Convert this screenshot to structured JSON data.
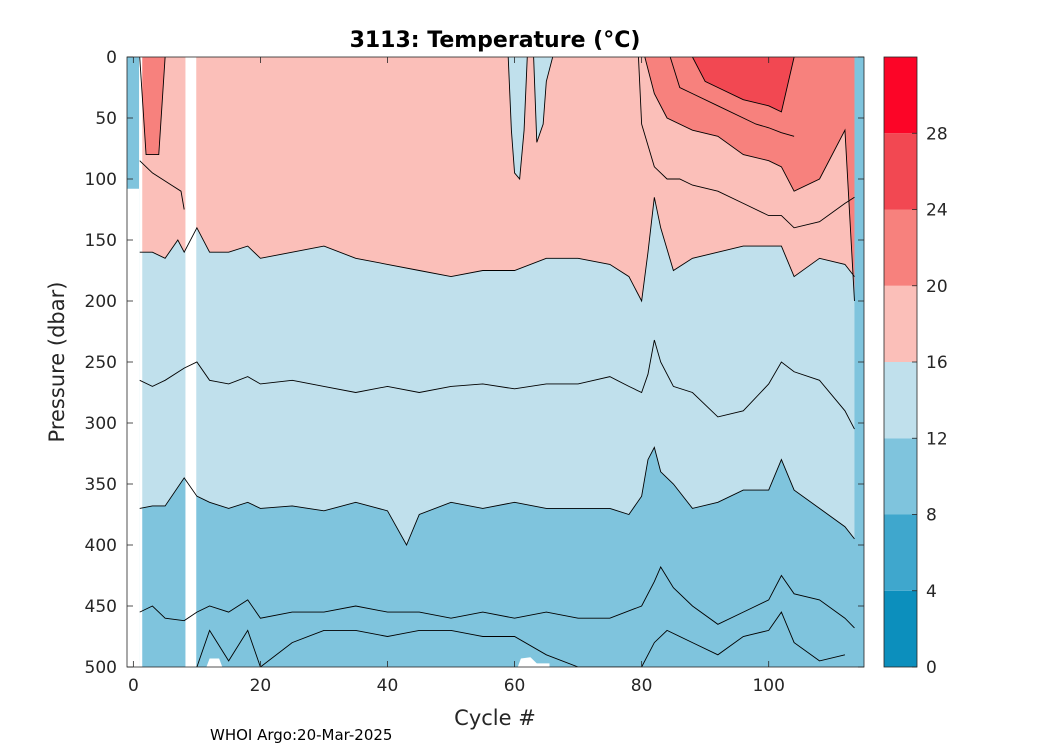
{
  "chart_data": {
    "type": "contour",
    "title": "3113:  Temperature (°C)",
    "xlabel": "Cycle #",
    "ylabel": "Pressure (dbar)",
    "xlim": [
      -1,
      115
    ],
    "ylim": [
      0,
      500
    ],
    "y_reversed": true,
    "x_ticks": [
      0,
      20,
      40,
      60,
      80,
      100
    ],
    "x_tick_labels": [
      "0",
      "20",
      "40",
      "60",
      "80",
      "100"
    ],
    "y_ticks": [
      0,
      50,
      100,
      150,
      200,
      250,
      300,
      350,
      400,
      450,
      500
    ],
    "y_tick_labels": [
      "0",
      "50",
      "100",
      "150",
      "200",
      "250",
      "300",
      "350",
      "400",
      "450",
      "500"
    ],
    "colorbar": {
      "levels": [
        0,
        4,
        8,
        12,
        16,
        20,
        24,
        28,
        32
      ],
      "tick_values": [
        0,
        4,
        8,
        12,
        16,
        20,
        24,
        28
      ],
      "tick_labels": [
        "0",
        "4",
        "8",
        "12",
        "16",
        "20",
        "24",
        "28"
      ],
      "colors": [
        "#0c8fbd",
        "#3fa7cd",
        "#7fc4dd",
        "#c0e0ec",
        "#fbbfb9",
        "#f7817d",
        "#f24852",
        "#fc0527"
      ]
    },
    "gaps": [
      {
        "x_range": [
          0.9,
          1.4
        ]
      },
      {
        "x_range": [
          8.2,
          9.9
        ]
      }
    ],
    "isotherms": [
      {
        "level": 8,
        "x": [
          10,
          12,
          15,
          18,
          20,
          25,
          30,
          35,
          40,
          45,
          50,
          55,
          60,
          65,
          70,
          75,
          80,
          82,
          84,
          88,
          92,
          96,
          100,
          102,
          104,
          108,
          112
        ],
        "y": [
          500,
          470,
          495,
          470,
          500,
          480,
          470,
          470,
          475,
          470,
          470,
          475,
          475,
          490,
          500,
          500,
          500,
          480,
          470,
          480,
          490,
          475,
          470,
          455,
          480,
          495,
          490
        ]
      },
      {
        "level": 10,
        "x": [
          1,
          3,
          5,
          8,
          10,
          12,
          15,
          18,
          20,
          25,
          30,
          35,
          40,
          45,
          50,
          55,
          60,
          65,
          70,
          75,
          80,
          82,
          83,
          85,
          88,
          92,
          96,
          100,
          102,
          104,
          108,
          112,
          113.5
        ],
        "y": [
          455,
          450,
          460,
          462,
          455,
          450,
          455,
          445,
          460,
          455,
          455,
          450,
          455,
          455,
          460,
          455,
          460,
          455,
          460,
          460,
          450,
          430,
          418,
          435,
          450,
          465,
          455,
          445,
          425,
          440,
          445,
          460,
          468
        ]
      },
      {
        "level": 12,
        "x": [
          1,
          3,
          5,
          8,
          10,
          12,
          15,
          18,
          20,
          25,
          30,
          35,
          40,
          43,
          45,
          50,
          55,
          60,
          65,
          70,
          75,
          78,
          80,
          81,
          82,
          83,
          85,
          88,
          92,
          96,
          100,
          102,
          104,
          108,
          112,
          113.5
        ],
        "y": [
          370,
          368,
          368,
          345,
          360,
          365,
          370,
          365,
          370,
          368,
          372,
          365,
          372,
          400,
          375,
          365,
          370,
          365,
          370,
          370,
          370,
          375,
          360,
          330,
          320,
          340,
          350,
          370,
          365,
          355,
          355,
          330,
          355,
          370,
          385,
          395
        ]
      },
      {
        "level": 14,
        "x": [
          1,
          3,
          5,
          8,
          10,
          12,
          15,
          18,
          20,
          25,
          30,
          35,
          40,
          45,
          50,
          55,
          60,
          65,
          70,
          75,
          78,
          80,
          81,
          82,
          83,
          85,
          88,
          92,
          96,
          100,
          102,
          104,
          108,
          112,
          113.5
        ],
        "y": [
          265,
          270,
          265,
          255,
          250,
          265,
          268,
          262,
          268,
          265,
          270,
          275,
          270,
          275,
          270,
          268,
          272,
          268,
          268,
          262,
          270,
          275,
          260,
          232,
          250,
          270,
          275,
          295,
          290,
          268,
          250,
          258,
          265,
          290,
          305
        ]
      },
      {
        "level": 16,
        "x": [
          1,
          3,
          5,
          7,
          8,
          10,
          12,
          15,
          18,
          20,
          25,
          30,
          35,
          40,
          45,
          50,
          55,
          60,
          65,
          70,
          75,
          78,
          80,
          81,
          82,
          83,
          85,
          88,
          92,
          96,
          100,
          102,
          104,
          108,
          112,
          113.5
        ],
        "y": [
          160,
          160,
          165,
          150,
          160,
          140,
          160,
          160,
          155,
          165,
          160,
          155,
          165,
          170,
          175,
          180,
          175,
          175,
          165,
          165,
          170,
          180,
          200,
          160,
          115,
          140,
          175,
          165,
          160,
          155,
          155,
          155,
          180,
          165,
          170,
          180
        ]
      },
      {
        "level": 16.5,
        "x": [
          59,
          59.5,
          60,
          60.8,
          61.5,
          62
        ],
        "y": [
          0,
          60,
          95,
          100,
          60,
          0
        ]
      },
      {
        "level": 16.6,
        "x": [
          63,
          63.5,
          64.5,
          65,
          66
        ],
        "y": [
          0,
          70,
          55,
          20,
          0
        ]
      },
      {
        "level": 18,
        "x": [
          1,
          2,
          3,
          4.5,
          6,
          7.5,
          8
        ],
        "y": [
          85,
          90,
          95,
          100,
          105,
          110,
          125
        ]
      },
      {
        "level": 18.5,
        "x": [
          79.5,
          80,
          82,
          84,
          86,
          88,
          92,
          96,
          100,
          102,
          104,
          108,
          112,
          113.5
        ],
        "y": [
          0,
          55,
          90,
          100,
          100,
          105,
          110,
          120,
          130,
          130,
          140,
          135,
          120,
          115
        ]
      },
      {
        "level": 20,
        "x": [
          1,
          2,
          3,
          4,
          5
        ],
        "y": [
          0,
          80,
          80,
          80,
          0
        ]
      },
      {
        "level": 20.5,
        "x": [
          80.5,
          82,
          84,
          88,
          92,
          96,
          100,
          102,
          104,
          108,
          112,
          113.5
        ],
        "y": [
          0,
          30,
          50,
          60,
          65,
          80,
          85,
          90,
          110,
          100,
          60,
          200
        ]
      },
      {
        "level": 22,
        "x": [
          84.5,
          86,
          88,
          92,
          96,
          98,
          100,
          102,
          104
        ],
        "y": [
          0,
          25,
          30,
          40,
          50,
          55,
          58,
          62,
          65
        ]
      },
      {
        "level": 24,
        "x": [
          88,
          90,
          92,
          96,
          100,
          102,
          104
        ],
        "y": [
          0,
          20,
          25,
          35,
          40,
          45,
          0
        ]
      }
    ]
  },
  "footer": {
    "text": "WHOI Argo:20-Mar-2025"
  }
}
